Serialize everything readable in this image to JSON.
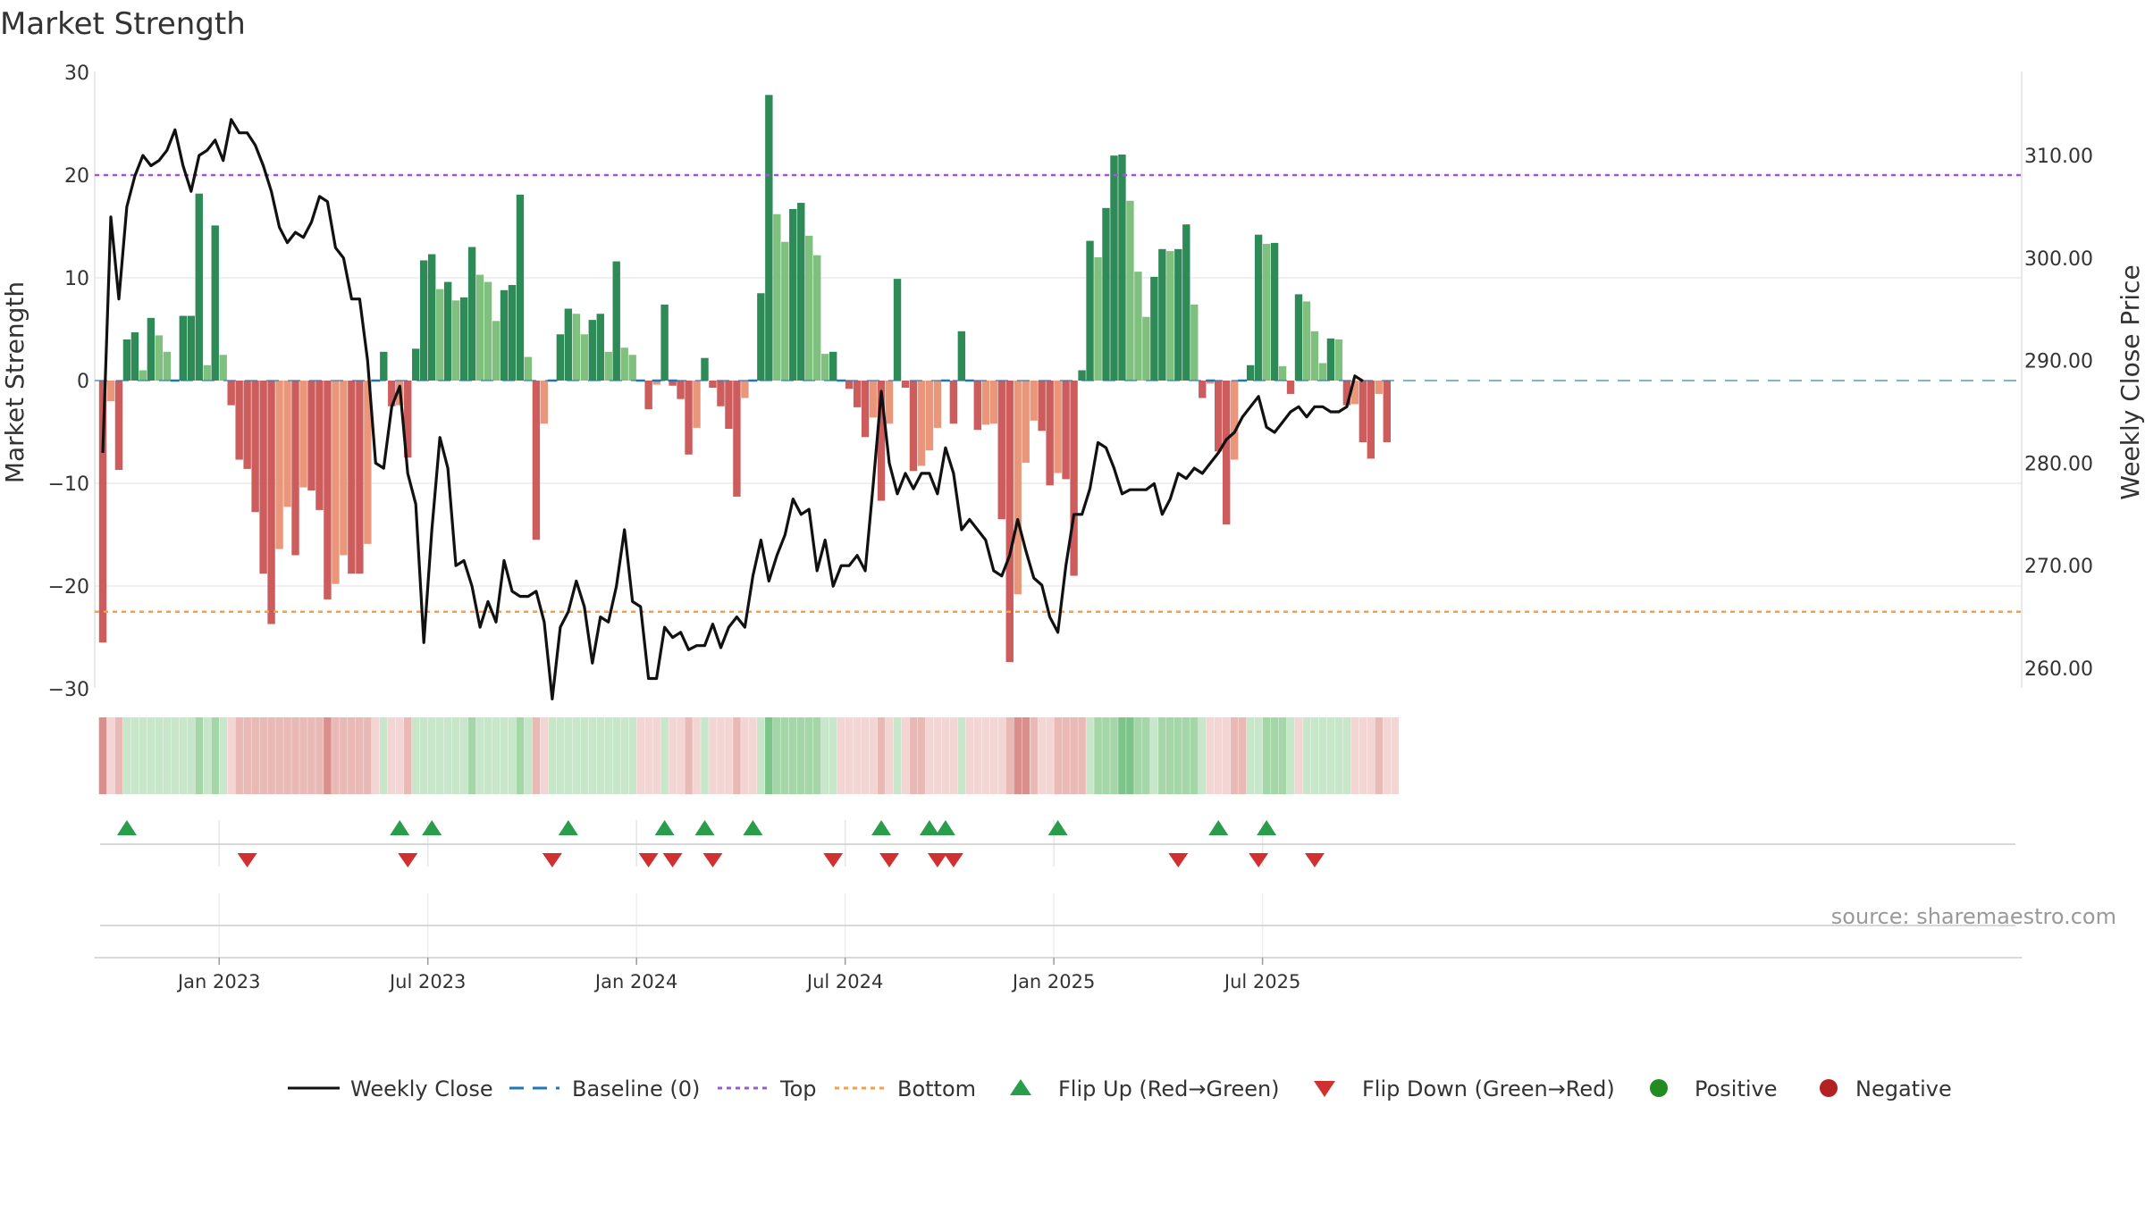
{
  "title": "Market Strength",
  "source": "source: sharemaestro.com",
  "colors": {
    "line": "#111111",
    "baseline": "#1f77b4",
    "top": "#9b59d6",
    "bottom": "#f0a050",
    "flip_up": "#2a9d4a",
    "flip_down": "#d03030",
    "pos_strong": "#2e8b57",
    "pos_light": "#7fc07f",
    "neg_strong": "#cd5c5c",
    "neg_light": "#e9967a",
    "dot_pos": "#228b22",
    "dot_neg": "#b22222"
  },
  "chart_data": {
    "type": "bar",
    "title": "Market Strength",
    "ylabel": "Market Strength",
    "y2label": "Weekly Close Price",
    "ylim": [
      -30,
      30
    ],
    "y2lim": [
      256.5,
      317.0
    ],
    "yticks": [
      "30",
      "20",
      "10",
      "0",
      "−10",
      "−20",
      "−30"
    ],
    "yticks_values": [
      30,
      20,
      10,
      0,
      -10,
      -20,
      -30
    ],
    "y2ticks": [
      "260.00",
      "270.00",
      "280.00",
      "290.00",
      "300.00",
      "310.00"
    ],
    "y2ticks_values": [
      260,
      270,
      280,
      290,
      300,
      310
    ],
    "top_level": 20,
    "bottom_level": -22.5,
    "xticks": [
      {
        "label": "Jan 2023",
        "week": 14.5
      },
      {
        "label": "Jul 2023",
        "week": 40.5
      },
      {
        "label": "Jan 2024",
        "week": 66.5
      },
      {
        "label": "Jul 2024",
        "week": 92.5
      },
      {
        "label": "Jan 2025",
        "week": 118.5
      },
      {
        "label": "Jul 2025",
        "week": 144.5
      }
    ],
    "strength": [
      -25.5,
      -2,
      -8.7,
      4,
      4.7,
      1,
      6.1,
      4.4,
      2.8,
      0,
      6.3,
      6.3,
      18.2,
      1.5,
      15.1,
      2.5,
      -2.4,
      -7.7,
      -8.6,
      -12.8,
      -18.8,
      -23.7,
      -16.4,
      -12.3,
      -17,
      -10.4,
      -10.7,
      -12.6,
      -21.3,
      -19.8,
      -17,
      -18.8,
      -18.8,
      -15.9,
      0,
      2.8,
      -2.5,
      -2.4,
      -7.5,
      3.1,
      11.7,
      12.3,
      8.9,
      9.6,
      7.8,
      8.1,
      13,
      10.3,
      9.6,
      5.8,
      8.8,
      9.3,
      18.1,
      2.3,
      -15.5,
      -4.2,
      0,
      4.5,
      7,
      6.5,
      4.5,
      5.9,
      6.5,
      2.8,
      11.6,
      3.2,
      2.5,
      0,
      -2.8,
      -0.4,
      7.4,
      -0.5,
      -1.8,
      -7.2,
      -4.6,
      2.2,
      -0.7,
      -2.5,
      -4.7,
      -11.3,
      -1.7,
      0,
      8.5,
      27.8,
      16.2,
      13.5,
      16.7,
      17.3,
      14.1,
      12.2,
      2.6,
      2.8,
      0,
      -0.8,
      -2.6,
      -5.5,
      -3.6,
      -11.7,
      -4.2,
      9.9,
      -0.7,
      -8.8,
      -8.3,
      -6.8,
      -4.6,
      0,
      -4.2,
      4.8,
      0,
      -4.8,
      -4.3,
      -4.2,
      -13.5,
      -27.4,
      -20.8,
      -8,
      -3.9,
      -4.9,
      -10.2,
      -9,
      -9.6,
      -19,
      1,
      13.6,
      12,
      16.8,
      21.9,
      22,
      17.5,
      10.6,
      6.2,
      10.1,
      12.8,
      12.6,
      12.8,
      15.2,
      7.4,
      -1.7,
      -0.3,
      -6.9,
      -14,
      -7.7,
      0,
      1.5,
      14.2,
      13.3,
      13.4,
      1.4,
      -1.3,
      8.4,
      7.7,
      4.8,
      1.7,
      4.1,
      4,
      -2.4,
      -2.3,
      -6,
      -7.6,
      -1.3,
      -6
    ],
    "close": [
      281,
      304,
      296,
      305,
      308,
      310,
      309,
      309.5,
      310.5,
      312.5,
      309,
      306.5,
      310,
      310.5,
      311.5,
      309.5,
      313.5,
      312.2,
      312.2,
      311,
      309,
      306.5,
      303,
      301.5,
      302.5,
      302,
      303.5,
      306,
      305.5,
      301,
      300,
      296,
      296,
      290,
      280,
      279.5,
      285.5,
      287.5,
      279,
      276,
      262.5,
      273.5,
      282.5,
      279.5,
      270,
      270.5,
      268,
      264,
      266.5,
      264.5,
      270.5,
      267.5,
      267,
      267,
      267.5,
      264.5,
      257,
      264,
      265.5,
      268.5,
      266,
      260.5,
      265,
      264.5,
      268,
      273.5,
      266.5,
      266,
      259,
      259,
      264,
      263,
      263.5,
      261.8,
      262.2,
      262.2,
      264.3,
      262,
      264,
      265,
      264,
      269,
      272.5,
      268.5,
      271,
      273,
      276.5,
      275,
      275.5,
      269.5,
      272.5,
      268,
      270,
      270,
      271,
      269.5,
      278,
      287,
      280,
      277,
      279,
      277.5,
      279,
      279,
      277,
      281.5,
      279,
      273.5,
      274.5,
      273.5,
      272.5,
      269.5,
      269,
      271,
      274.5,
      271.5,
      268.8,
      268.1,
      265,
      263.5,
      270,
      275,
      275,
      277.5,
      282,
      281.5,
      279.5,
      277,
      277.4,
      277.4,
      277.4,
      278,
      275,
      276.5,
      279,
      278.5,
      279.5,
      279,
      280,
      281,
      282.3,
      283,
      284.5,
      285.5,
      286.5,
      283.5,
      283,
      284,
      285,
      285.5,
      284.5,
      285.5,
      285.5,
      285,
      285,
      285.5,
      288.5,
      288
    ],
    "strip_levels": [
      -3,
      -1,
      -2,
      1,
      1,
      1,
      1,
      1,
      1,
      1,
      1,
      1,
      2,
      1,
      2,
      1,
      -1,
      -2,
      -2,
      -2,
      -2,
      -2,
      -2,
      -2,
      -2,
      -2,
      -2,
      -2,
      -3,
      -2,
      -2,
      -2,
      -2,
      -2,
      -1,
      1,
      -1,
      -1,
      -2,
      1,
      1,
      1,
      1,
      1,
      1,
      1,
      2,
      1,
      1,
      1,
      1,
      1,
      2,
      1,
      -2,
      -1,
      1,
      1,
      1,
      1,
      1,
      1,
      1,
      1,
      1,
      1,
      1,
      -1,
      -1,
      -1,
      1,
      -1,
      -1,
      -2,
      -1,
      1,
      -1,
      -1,
      -1,
      -2,
      -1,
      -1,
      1,
      3,
      2,
      2,
      2,
      2,
      2,
      2,
      1,
      1,
      -1,
      -1,
      -1,
      -1,
      -1,
      -2,
      -1,
      1,
      -1,
      -2,
      -2,
      -1,
      -1,
      -1,
      -1,
      1,
      -1,
      -1,
      -1,
      -1,
      -1,
      -2,
      -3,
      -3,
      -2,
      -1,
      -1,
      -2,
      -2,
      -2,
      -2,
      1,
      2,
      2,
      2,
      3,
      3,
      2,
      2,
      1,
      2,
      2,
      2,
      2,
      2,
      1,
      -1,
      -1,
      -1,
      -2,
      -2,
      1,
      1,
      2,
      2,
      2,
      1,
      -1,
      1,
      1,
      1,
      1,
      1,
      1,
      -1,
      -1,
      -1,
      -2,
      -1,
      -1
    ],
    "flip_up_weeks": [
      3,
      37,
      41,
      58,
      70,
      75,
      81,
      97,
      103,
      105,
      119,
      139,
      145
    ],
    "flip_down_weeks": [
      18,
      38,
      56,
      68,
      71,
      76,
      91,
      98,
      104,
      106,
      134,
      144,
      151
    ]
  },
  "legend": [
    {
      "key": "weekly-close",
      "label": "Weekly Close"
    },
    {
      "key": "baseline",
      "label": "Baseline (0)"
    },
    {
      "key": "top",
      "label": "Top"
    },
    {
      "key": "bottom",
      "label": "Bottom"
    },
    {
      "key": "flip-up",
      "label": "Flip Up (Red→Green)"
    },
    {
      "key": "flip-down",
      "label": "Flip Down (Green→Red)"
    },
    {
      "key": "positive",
      "label": "Positive"
    },
    {
      "key": "negative",
      "label": "Negative"
    }
  ]
}
